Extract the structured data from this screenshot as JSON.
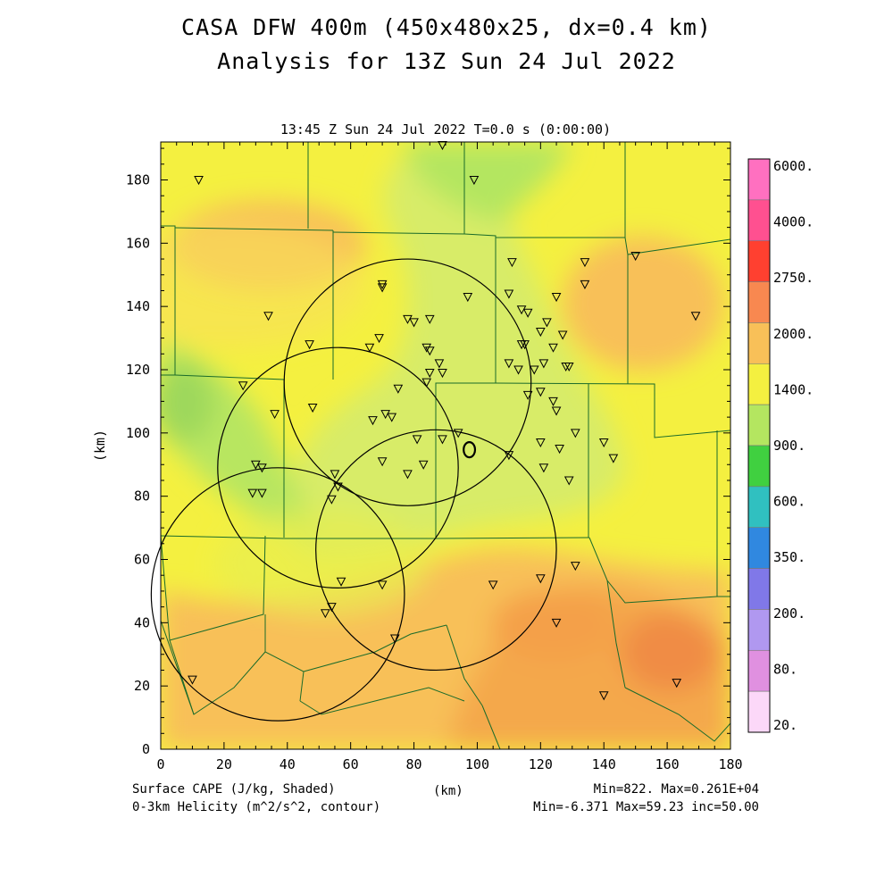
{
  "title": "CASA DFW 400m (450x480x25, dx=0.4 km)",
  "subtitle": "Analysis for 13Z Sun 24 Jul 2022",
  "time_label": "13:45 Z Sun 24 Jul 2022   T=0.0 s (0:00:00)",
  "x_axis_label": "(km)",
  "y_axis_label": "(km)",
  "x_ticks": [
    "0",
    "20",
    "40",
    "60",
    "80",
    "100",
    "120",
    "140",
    "160",
    "180"
  ],
  "y_ticks": [
    "0",
    "20",
    "40",
    "60",
    "80",
    "100",
    "120",
    "140",
    "160",
    "180"
  ],
  "legend": {
    "labels": [
      "6000.",
      "4000.",
      "2750.",
      "2000.",
      "1400.",
      "900.",
      "600.",
      "350.",
      "200.",
      "80.",
      "20."
    ],
    "colors": [
      "#ff70c0",
      "#ff5090",
      "#ff4030",
      "#f88850",
      "#f8c058",
      "#f4f040",
      "#b4e660",
      "#40d040",
      "#30c0c0",
      "#3088e0",
      "#8078e8",
      "#b098f0",
      "#e090e0",
      "#fcd8f8"
    ]
  },
  "footer": {
    "left1": "Surface CAPE (J/kg, Shaded)",
    "left2": "0-3km Helicity (m^2/s^2, contour)",
    "center": "(km)",
    "right1": "Min=822.  Max=0.261E+04",
    "right2": "Min=-6.371 Max=59.23 inc=50.00"
  },
  "map_data": {
    "x_range_km": [
      0,
      180
    ],
    "y_range_km": [
      0,
      192
    ],
    "radar_rings_km": [
      {
        "cx": 78,
        "cy": 116,
        "r": 39
      },
      {
        "cx": 56,
        "cy": 89,
        "r": 38
      },
      {
        "cx": 87,
        "cy": 63,
        "r": 38
      },
      {
        "cx": 37,
        "cy": 49,
        "r": 40
      }
    ],
    "station_markers_km": [
      [
        12,
        180
      ],
      [
        89,
        191
      ],
      [
        99,
        180
      ],
      [
        111,
        154
      ],
      [
        134,
        154
      ],
      [
        150,
        156
      ],
      [
        34,
        137
      ],
      [
        70,
        147
      ],
      [
        70,
        146
      ],
      [
        110,
        144
      ],
      [
        125,
        143
      ],
      [
        134,
        147
      ],
      [
        97,
        143
      ],
      [
        169,
        137
      ],
      [
        47,
        128
      ],
      [
        66,
        127
      ],
      [
        69,
        130
      ],
      [
        78,
        136
      ],
      [
        80,
        135
      ],
      [
        85,
        136
      ],
      [
        84,
        127
      ],
      [
        85,
        126
      ],
      [
        88,
        122
      ],
      [
        85,
        119
      ],
      [
        89,
        119
      ],
      [
        84,
        116
      ],
      [
        75,
        114
      ],
      [
        114,
        139
      ],
      [
        116,
        138
      ],
      [
        120,
        132
      ],
      [
        122,
        135
      ],
      [
        127,
        131
      ],
      [
        114,
        128
      ],
      [
        115,
        128
      ],
      [
        124,
        127
      ],
      [
        110,
        122
      ],
      [
        113,
        120
      ],
      [
        118,
        120
      ],
      [
        121,
        122
      ],
      [
        128,
        121
      ],
      [
        129,
        121
      ],
      [
        116,
        112
      ],
      [
        120,
        113
      ],
      [
        124,
        110
      ],
      [
        125,
        107
      ],
      [
        26,
        115
      ],
      [
        36,
        106
      ],
      [
        48,
        108
      ],
      [
        67,
        104
      ],
      [
        71,
        106
      ],
      [
        73,
        105
      ],
      [
        81,
        98
      ],
      [
        89,
        98
      ],
      [
        94,
        100
      ],
      [
        110,
        93
      ],
      [
        120,
        97
      ],
      [
        126,
        95
      ],
      [
        131,
        100
      ],
      [
        140,
        97
      ],
      [
        143,
        92
      ],
      [
        70,
        91
      ],
      [
        78,
        87
      ],
      [
        83,
        90
      ],
      [
        121,
        89
      ],
      [
        129,
        85
      ],
      [
        30,
        90
      ],
      [
        32,
        89
      ],
      [
        29,
        81
      ],
      [
        32,
        81
      ],
      [
        55,
        87
      ],
      [
        56,
        83
      ],
      [
        54,
        79
      ],
      [
        57,
        53
      ],
      [
        70,
        52
      ],
      [
        105,
        52
      ],
      [
        120,
        54
      ],
      [
        131,
        58
      ],
      [
        125,
        40
      ],
      [
        54,
        45
      ],
      [
        52,
        43
      ],
      [
        74,
        35
      ],
      [
        10,
        22
      ],
      [
        140,
        17
      ],
      [
        163,
        21
      ]
    ],
    "helicity_contour_km": {
      "cx": 97.5,
      "cy": 94.7,
      "rx": 1.8,
      "ry": 2.4
    }
  }
}
